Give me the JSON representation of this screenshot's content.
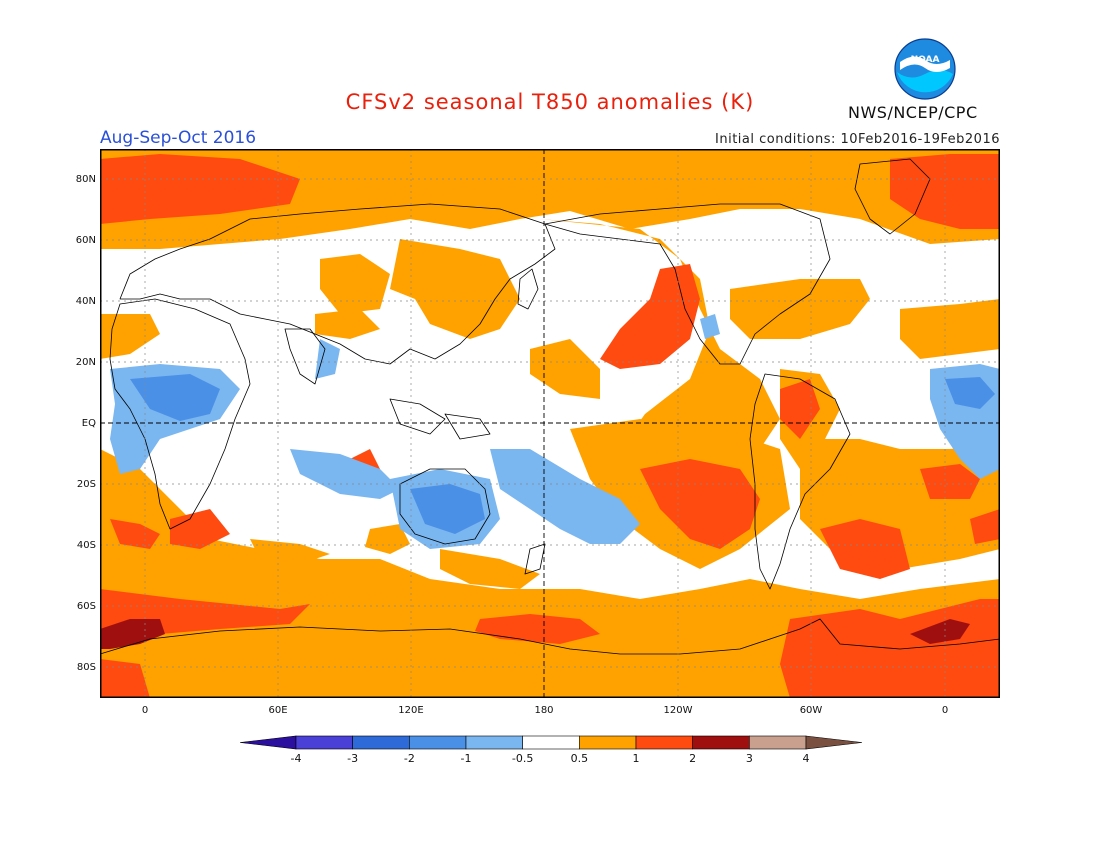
{
  "title": "CFSv2 seasonal T850 anomalies (K)",
  "period": "Aug-Sep-Oct 2016",
  "initial_conditions": "Initial conditions: 10Feb2016-19Feb2016",
  "organization": "NWS/NCEP/CPC",
  "logo_text": "NOAA",
  "lat_labels": [
    "80N",
    "60N",
    "40N",
    "20N",
    "EQ",
    "20S",
    "40S",
    "60S",
    "80S"
  ],
  "lon_labels": [
    "0",
    "60E",
    "120E",
    "180",
    "120W",
    "60W",
    "0"
  ],
  "colorbar": {
    "labels": [
      "-4",
      "-3",
      "-2",
      "-1",
      "-0.5",
      "0.5",
      "1",
      "2",
      "3",
      "4"
    ],
    "colors": [
      "#2b0f9e",
      "#4a3fd6",
      "#2f6bd8",
      "#4a90e6",
      "#7ab6f0",
      "#ffffff",
      "#ffa200",
      "#ff4a10",
      "#a00f0f",
      "#c9a08e",
      "#7a5040"
    ]
  },
  "colors": {
    "title": "#e8200c",
    "period": "#2a4fd8",
    "pos_0_5_1": "#ffa200",
    "pos_1_2": "#ff4a10",
    "pos_2_3": "#a00f0f",
    "neg_0_5_1": "#7ab6f0",
    "neg_1_2": "#4a90e6"
  }
}
